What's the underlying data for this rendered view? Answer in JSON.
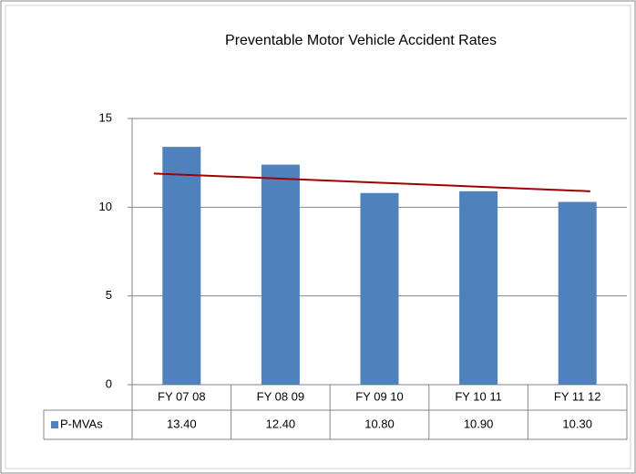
{
  "chart_data": {
    "type": "bar",
    "title": "Preventable Motor Vehicle Accident Rates",
    "categories": [
      "FY 07 08",
      "FY 08 09",
      "FY 09 10",
      "FY 10 11",
      "FY 11 12"
    ],
    "series": [
      {
        "name": "P-MVAs",
        "color": "#4f81bd",
        "values": [
          13.4,
          12.4,
          10.8,
          10.9,
          10.3
        ],
        "value_labels": [
          "13.40",
          "12.40",
          "10.80",
          "10.90",
          "10.30"
        ]
      }
    ],
    "trendline": {
      "start": 11.9,
      "end": 10.9,
      "color": "#a00000"
    },
    "ylim": [
      0,
      15
    ],
    "yticks": [
      0,
      5,
      10,
      15
    ],
    "grid": true
  }
}
